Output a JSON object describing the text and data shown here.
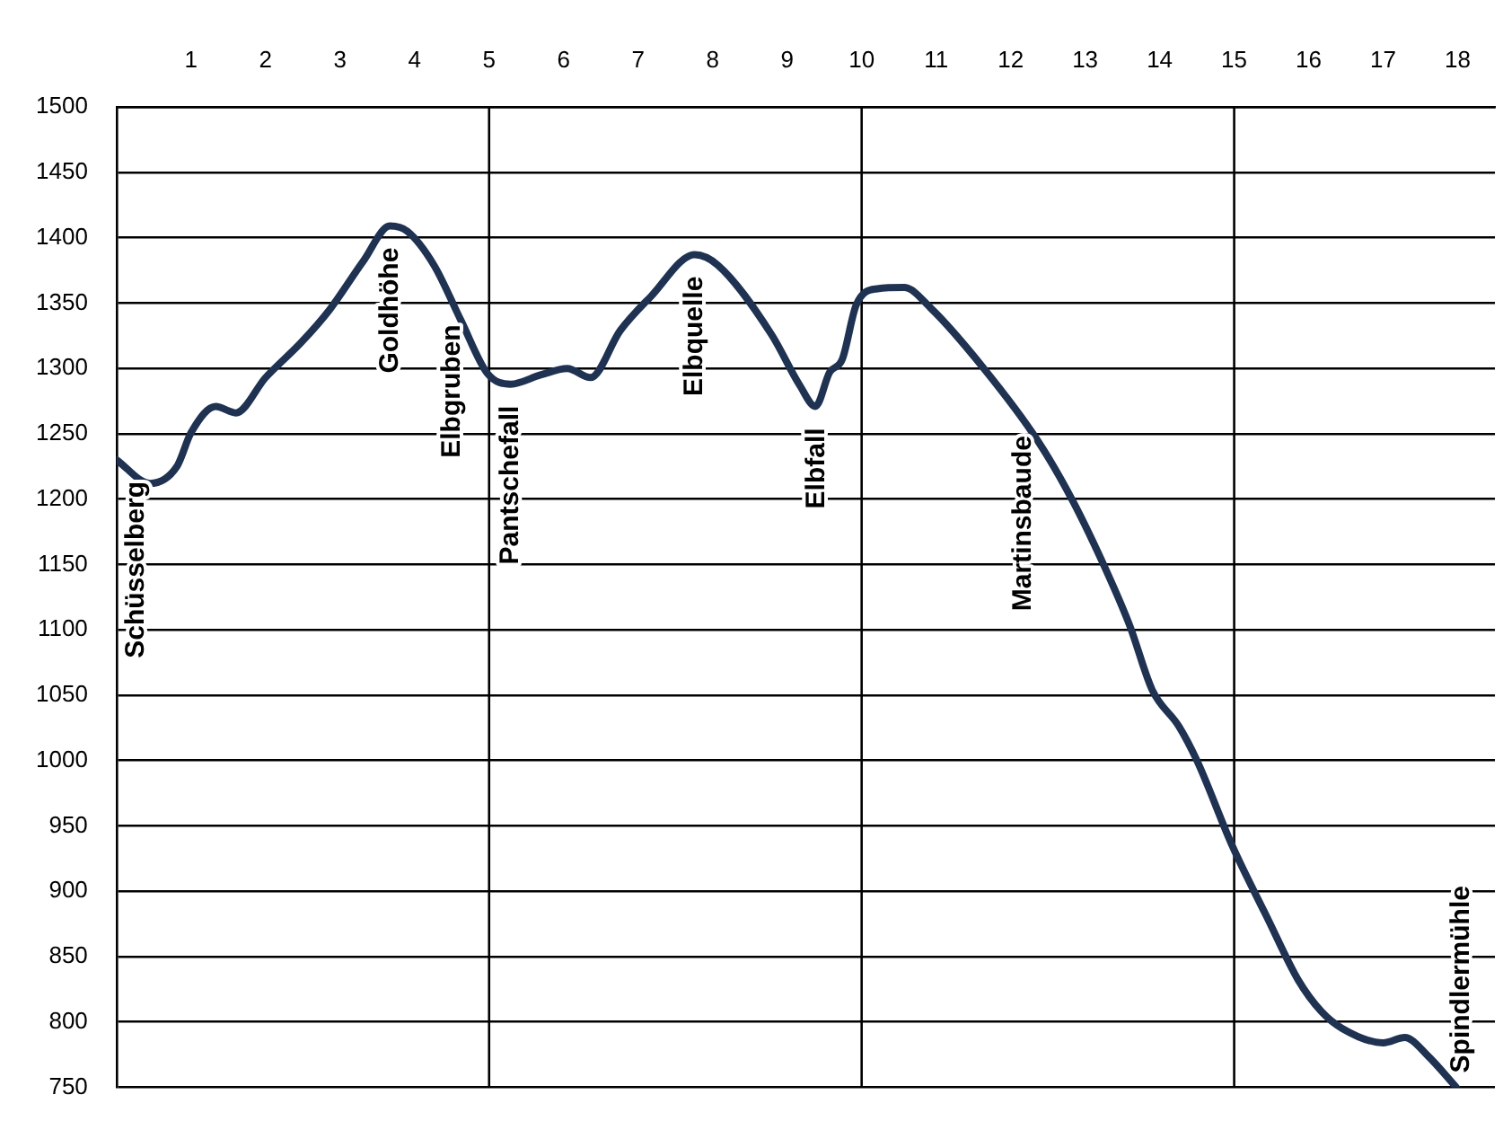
{
  "chart_data": {
    "type": "line",
    "x": [
      0,
      0.45,
      0.81,
      1.0,
      1.33,
      1.6,
      2.0,
      2.48,
      2.86,
      3.31,
      3.67,
      3.9,
      4.26,
      4.62,
      4.98,
      5.29,
      5.69,
      6.05,
      6.36,
      6.76,
      7.17,
      7.76,
      8.07,
      8.79,
      9.17,
      9.38,
      9.57,
      9.74,
      9.93,
      10.21,
      10.57,
      10.93,
      11.64,
      12.36,
      12.83,
      13.31,
      13.6,
      13.9,
      14.26,
      14.5,
      14.98,
      15.45,
      15.86,
      16.17,
      16.45,
      17.0,
      17.29,
      17.6,
      17.98
    ],
    "series": [
      {
        "color": "#1f3252",
        "values": [
          1230,
          1212,
          1225,
          1251,
          1271,
          1266,
          1293,
          1320,
          1345,
          1382,
          1409,
          1405,
          1379,
          1337,
          1296,
          1288,
          1295,
          1300,
          1293,
          1329,
          1355,
          1387,
          1379,
          1326,
          1287,
          1271,
          1297,
          1307,
          1349,
          1361,
          1362,
          1346,
          1300,
          1245,
          1199,
          1142,
          1103,
          1054,
          1026,
          1000,
          934,
          879,
          832,
          808,
          795,
          784,
          788,
          774,
          750
        ]
      }
    ],
    "xlim": [
      0,
      18.5
    ],
    "xticks": [
      1,
      2,
      3,
      4,
      5,
      6,
      7,
      8,
      9,
      10,
      11,
      12,
      13,
      14,
      15,
      16,
      17,
      18
    ],
    "ylim": [
      750,
      1500
    ],
    "yticks": [
      750,
      800,
      850,
      900,
      950,
      1000,
      1050,
      1100,
      1150,
      1200,
      1250,
      1300,
      1350,
      1400,
      1450,
      1500
    ],
    "grid": "y",
    "legend": false,
    "marker": "none",
    "line_style": "solid",
    "ref_lines": [
      {
        "axis": "x",
        "value": 5,
        "color": "#000000"
      },
      {
        "axis": "x",
        "value": 10,
        "color": "#000000"
      },
      {
        "axis": "x",
        "value": 15,
        "color": "#000000"
      }
    ],
    "annotations": [
      {
        "text": "Schüsselberg",
        "x": 0,
        "y": 1230
      },
      {
        "text": "Goldhöhe",
        "x": 3.67,
        "y": 1409
      },
      {
        "text": "Elbgruben",
        "x": 4.5,
        "y": 1350
      },
      {
        "text": "Pantschefall",
        "x": 5.29,
        "y": 1288
      },
      {
        "text": "Elbquelle",
        "x": 7.76,
        "y": 1387
      },
      {
        "text": "Elbfall",
        "x": 9.4,
        "y": 1271
      },
      {
        "text": "Martinsbaude",
        "x": 12.17,
        "y": 1265
      },
      {
        "text": "Spindlermühle",
        "x": 18.05,
        "y": 750
      }
    ]
  }
}
